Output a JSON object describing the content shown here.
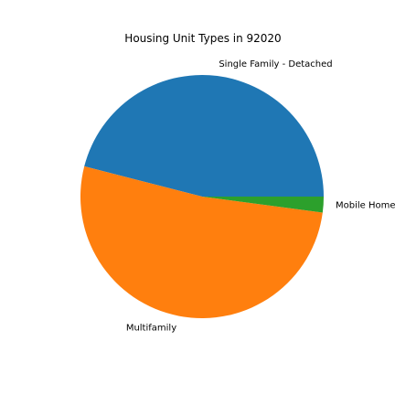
{
  "chart_data": {
    "type": "pie",
    "title": "Housing Unit Types in 92020",
    "start_angle_deg": 0,
    "direction": "counterclockwise",
    "slices": [
      {
        "label": "Single Family - Detached",
        "value": 46.0,
        "color": "#1f77b4"
      },
      {
        "label": "Multifamily",
        "value": 51.9,
        "color": "#ff7f0e"
      },
      {
        "label": "Mobile Home",
        "value": 2.1,
        "color": "#2ca02c"
      }
    ]
  }
}
